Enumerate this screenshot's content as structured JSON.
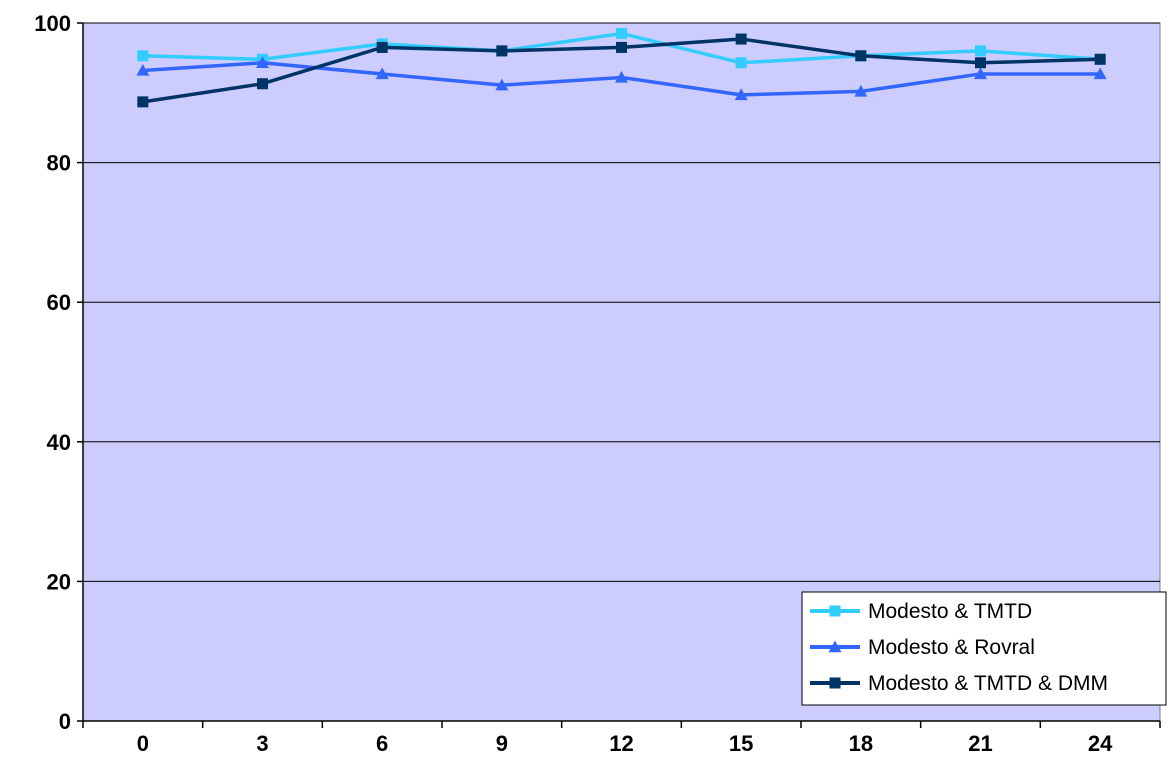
{
  "chart_data": {
    "type": "line",
    "x": [
      0,
      3,
      6,
      9,
      12,
      15,
      18,
      21,
      24
    ],
    "ylim": [
      0,
      100
    ],
    "yticks": [
      0,
      20,
      40,
      60,
      80,
      100
    ],
    "grid": true,
    "legend_position": "bottom-right",
    "plot_background": "#ccccff",
    "series": [
      {
        "name": "Modesto  & TMTD",
        "color": "#33ccff",
        "marker": "square",
        "values": [
          95.3,
          94.8,
          97.0,
          96.0,
          98.5,
          94.3,
          95.3,
          96.0,
          94.8
        ]
      },
      {
        "name": "Modesto & Rovral",
        "color": "#3366ff",
        "marker": "triangle",
        "values": [
          93.2,
          94.3,
          92.7,
          91.1,
          92.2,
          89.7,
          90.2,
          92.7,
          92.7
        ]
      },
      {
        "name": "Modesto & TMTD & DMM",
        "color": "#003366",
        "marker": "square",
        "values": [
          88.7,
          91.3,
          96.5,
          96.0,
          96.5,
          97.7,
          95.3,
          94.3,
          94.8
        ]
      }
    ]
  }
}
